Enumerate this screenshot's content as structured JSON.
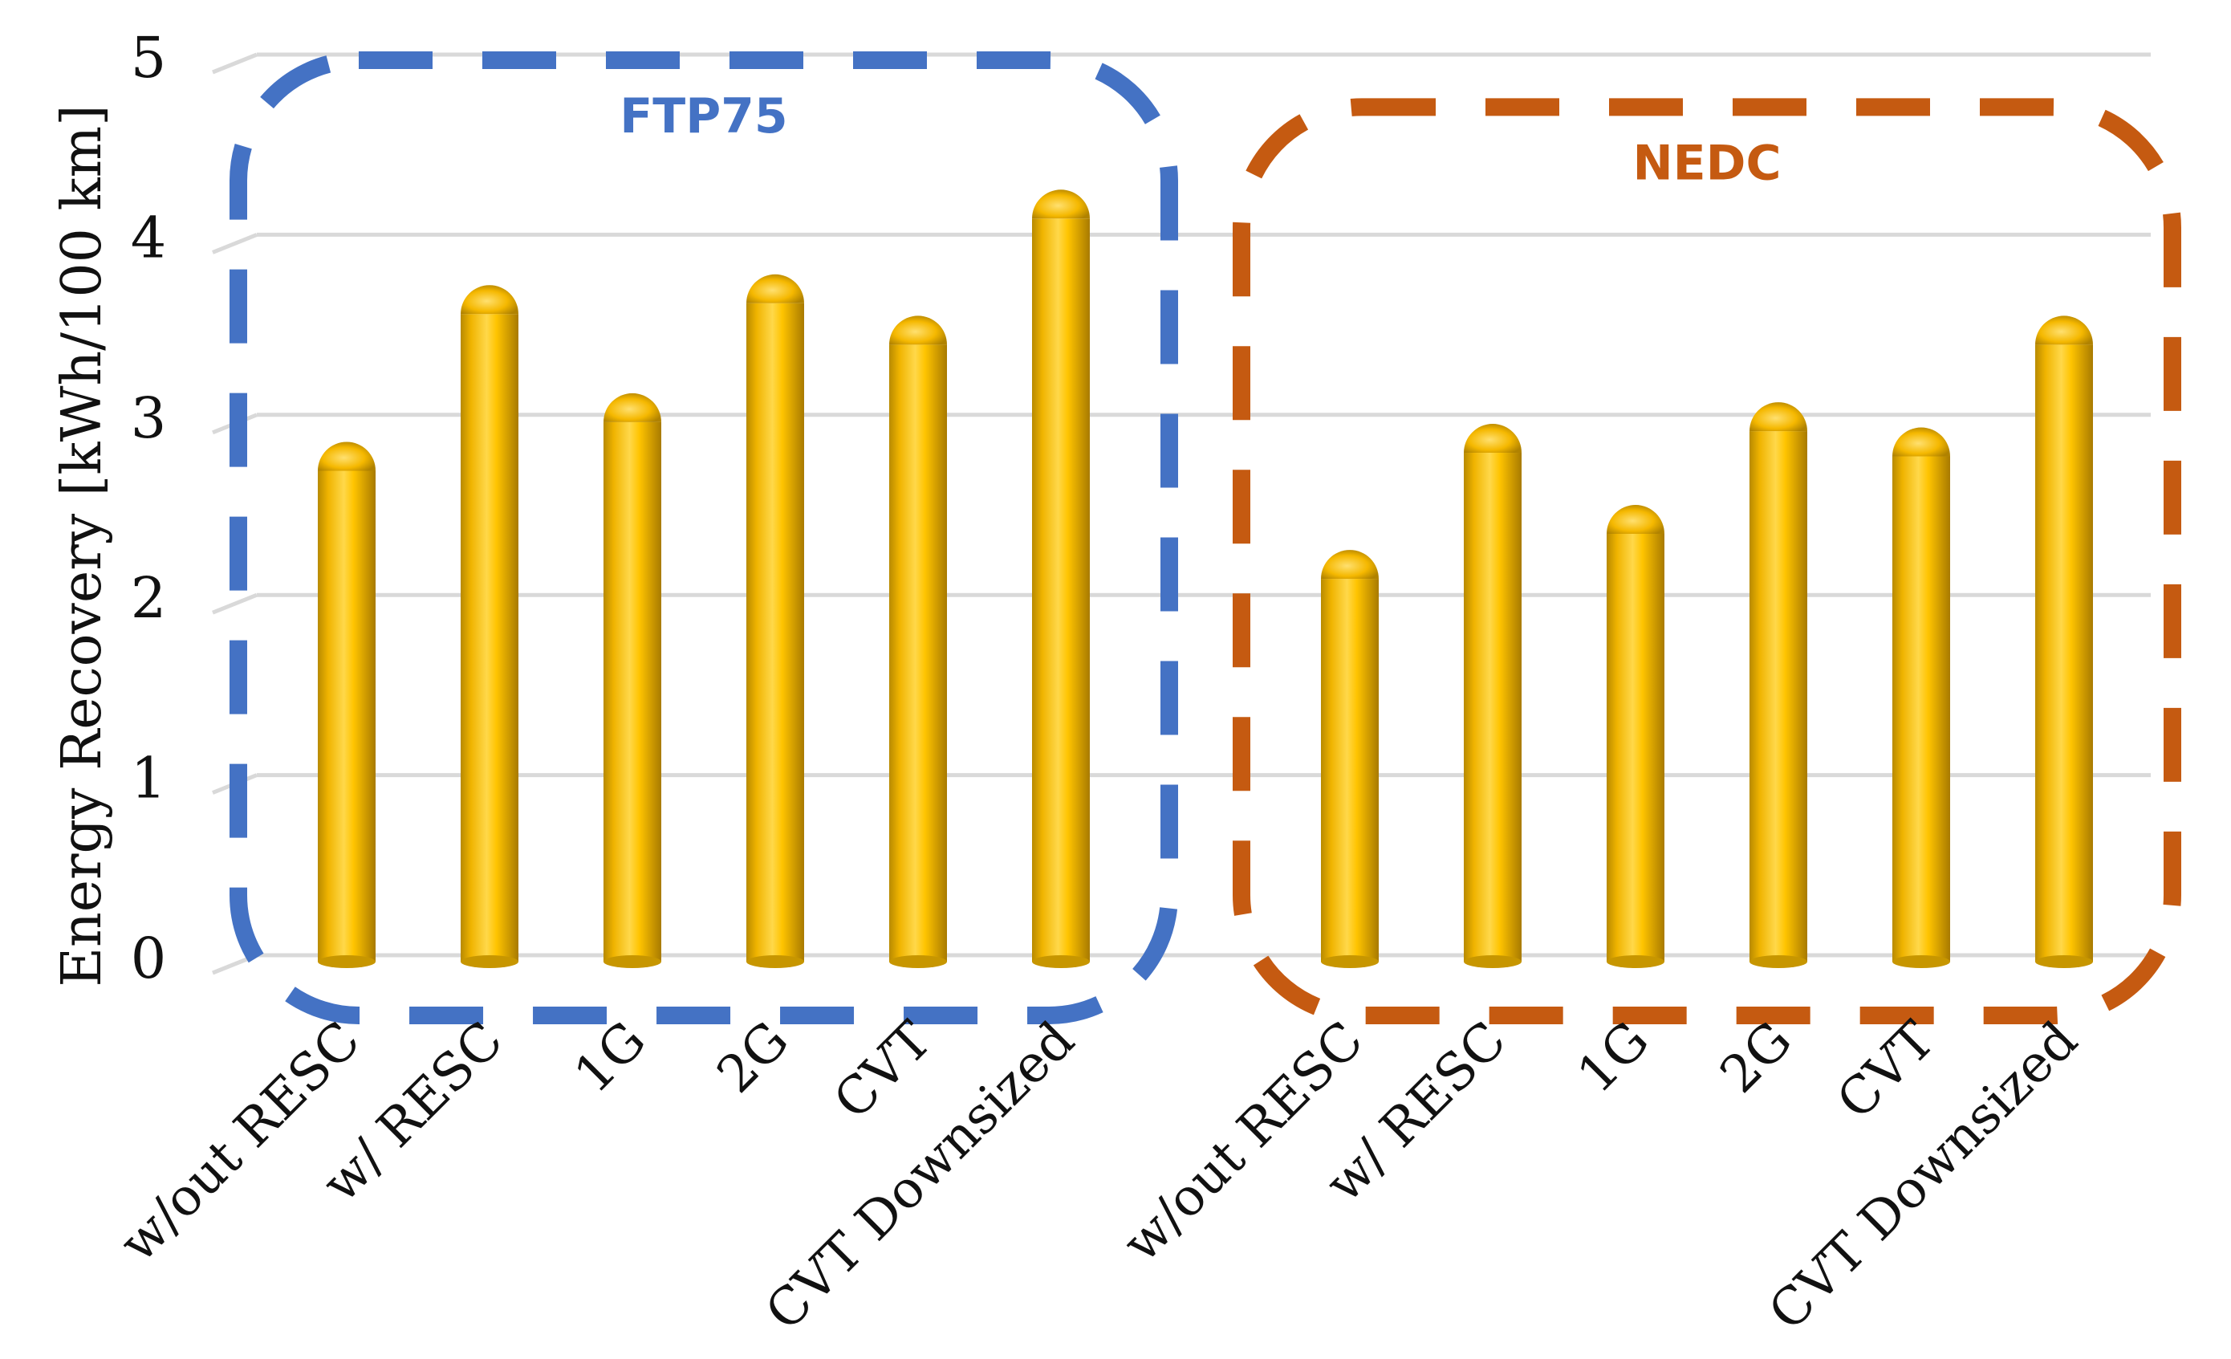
{
  "chart_data": {
    "type": "bar",
    "title": "",
    "xlabel": "",
    "ylabel": "Energy Recovery [kWh/100 km]",
    "ylim": [
      0,
      5
    ],
    "yticks": [
      0,
      1,
      2,
      3,
      4,
      5
    ],
    "grid": true,
    "bar_color": "#ffc000",
    "bar_shading": "cylinder",
    "groups": [
      {
        "name": "FTP75",
        "color": "#4472c4",
        "categories": [
          "w/out RESC",
          "w/ RESC",
          "1G",
          "2G",
          "CVT",
          "CVT Downsized"
        ],
        "values": [
          2.85,
          3.72,
          3.12,
          3.78,
          3.55,
          4.25
        ]
      },
      {
        "name": "NEDC",
        "color": "#c55a11",
        "categories": [
          "w/out RESC",
          "w/ RESC",
          "1G",
          "2G",
          "CVT",
          "CVT Downsized"
        ],
        "values": [
          2.25,
          2.95,
          2.5,
          3.07,
          2.93,
          3.55
        ]
      }
    ]
  }
}
